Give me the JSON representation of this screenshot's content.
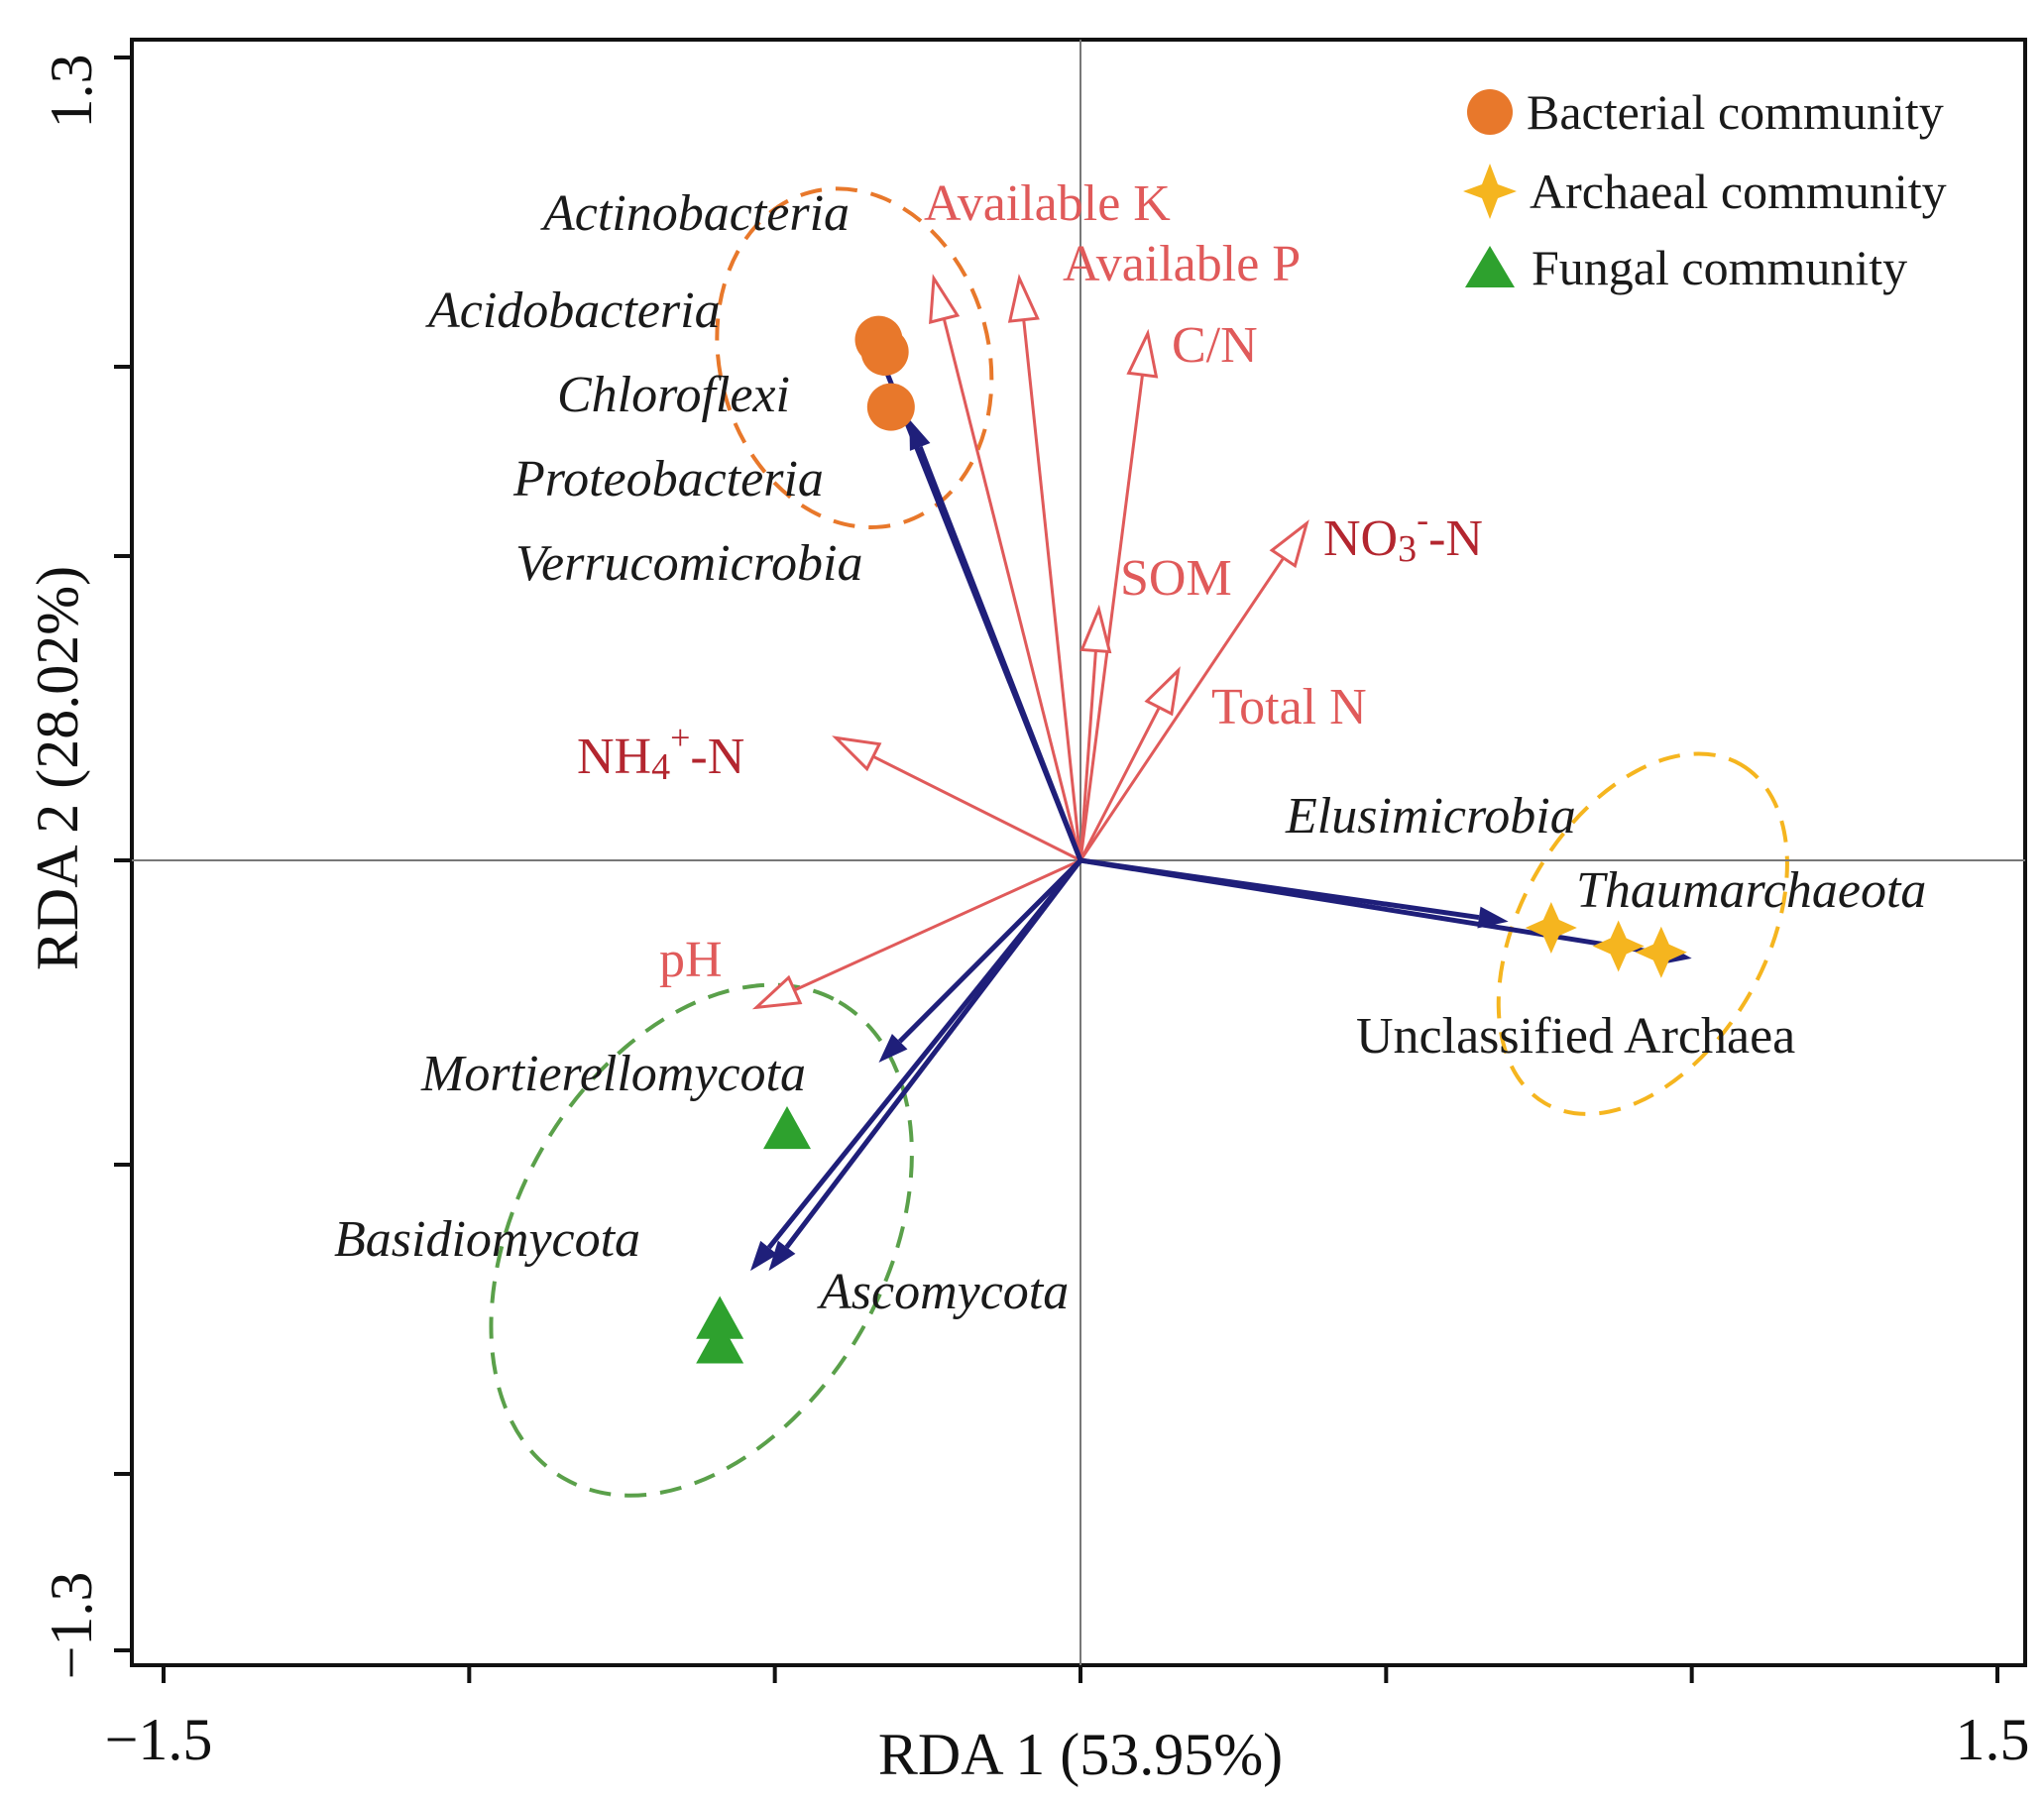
{
  "chart_data": {
    "type": "scatter",
    "subtype": "rda-biplot",
    "xlabel": "RDA 1 (53.95%)",
    "ylabel": "RDA 2 (28.02%)",
    "xlim": [
      -1.5,
      1.5
    ],
    "ylim": [
      -1.3,
      1.3
    ],
    "x_ticks": [
      -1.5,
      -1.0,
      -0.5,
      0.0,
      0.5,
      1.0,
      1.5
    ],
    "y_ticks": [
      -1.3,
      -0.8,
      -0.3,
      0.2,
      0.7,
      1.2
    ],
    "x_tick_labels": [
      "−1.5",
      "1.5"
    ],
    "y_tick_labels": [
      "−1.3",
      "1.3"
    ],
    "legend": {
      "position": "top-right",
      "entries": [
        {
          "label": "Bacterial community",
          "marker": "circle",
          "color": "#e8782b"
        },
        {
          "label": "Archaeal community",
          "marker": "star",
          "color": "#f5b51f"
        },
        {
          "label": "Fungal community",
          "marker": "triangle",
          "color": "#2ea12e"
        }
      ]
    },
    "env_vectors": [
      {
        "label": "Available K",
        "x": -0.24,
        "y": 0.95,
        "emphasis": false
      },
      {
        "label": "Available P",
        "x": -0.1,
        "y": 0.95,
        "emphasis": false
      },
      {
        "label": "C/N",
        "x": 0.11,
        "y": 0.86,
        "emphasis": false
      },
      {
        "label": "SOM",
        "x": 0.03,
        "y": 0.41,
        "emphasis": false
      },
      {
        "label": "Total N",
        "x": 0.16,
        "y": 0.31,
        "emphasis": false
      },
      {
        "label": "NH4+-N",
        "x": -0.4,
        "y": 0.2,
        "emphasis": true
      },
      {
        "label": "pH",
        "x": -0.53,
        "y": -0.24,
        "emphasis": false
      },
      {
        "label": "NO3--N",
        "x": 0.37,
        "y": 0.55,
        "emphasis": true
      }
    ],
    "species_vectors": [
      {
        "group": "bacteria",
        "x": -0.35,
        "y": 0.88
      },
      {
        "group": "bacteria",
        "x": -0.28,
        "y": 0.72
      },
      {
        "group": "archaea",
        "x": 1.0,
        "y": -0.16
      },
      {
        "group": "archaea",
        "x": 0.7,
        "y": -0.1
      },
      {
        "group": "fungi",
        "x": -0.33,
        "y": -0.33
      },
      {
        "group": "fungi",
        "x": -0.51,
        "y": -0.67
      },
      {
        "group": "fungi",
        "x": -0.54,
        "y": -0.67
      }
    ],
    "species_labels": [
      {
        "label": "Actinobacteria",
        "group": "bacteria",
        "italic": true
      },
      {
        "label": "Acidobacteria",
        "group": "bacteria",
        "italic": true
      },
      {
        "label": "Chloroflexi",
        "group": "bacteria",
        "italic": true
      },
      {
        "label": "Proteobacteria",
        "group": "bacteria",
        "italic": true
      },
      {
        "label": "Verrucomicrobia",
        "group": "bacteria",
        "italic": true
      },
      {
        "label": "Elusimicrobia",
        "group": "archaea",
        "italic": true
      },
      {
        "label": "Thaumarchaeota",
        "group": "archaea",
        "italic": true
      },
      {
        "label": "Unclassified Archaea",
        "group": "archaea",
        "italic": false
      },
      {
        "label": "Mortierellomycota",
        "group": "fungi",
        "italic": true
      },
      {
        "label": "Basidiomycota",
        "group": "fungi",
        "italic": true
      },
      {
        "label": "Ascomycota",
        "group": "fungi",
        "italic": true
      }
    ],
    "sample_points": [
      {
        "group": "bacteria",
        "x": -0.33,
        "y": 0.85
      },
      {
        "group": "bacteria",
        "x": -0.32,
        "y": 0.83
      },
      {
        "group": "bacteria",
        "x": -0.31,
        "y": 0.74
      },
      {
        "group": "archaea",
        "x": 0.77,
        "y": -0.11
      },
      {
        "group": "archaea",
        "x": 0.88,
        "y": -0.14
      },
      {
        "group": "archaea",
        "x": 0.95,
        "y": -0.15
      },
      {
        "group": "fungi",
        "x": -0.48,
        "y": -0.44
      },
      {
        "group": "fungi",
        "x": -0.59,
        "y": -0.75
      },
      {
        "group": "fungi",
        "x": -0.59,
        "y": -0.79
      }
    ],
    "group_ellipses": [
      {
        "group": "bacteria",
        "cx": -0.37,
        "cy": 0.82,
        "rx": 0.22,
        "ry": 0.28,
        "angle": -15,
        "color": "#e8782b"
      },
      {
        "group": "archaea",
        "cx": 0.92,
        "cy": -0.12,
        "rx": 0.32,
        "ry": 0.2,
        "angle": -60,
        "color": "#f5b51f"
      },
      {
        "group": "fungi",
        "cx": -0.62,
        "cy": -0.62,
        "rx": 0.45,
        "ry": 0.3,
        "angle": -60,
        "color": "#5aa04a"
      }
    ]
  },
  "colors": {
    "env_arrow": "#e05a5a",
    "species_arrow": "#1f1f7a",
    "axis": "#111111"
  }
}
